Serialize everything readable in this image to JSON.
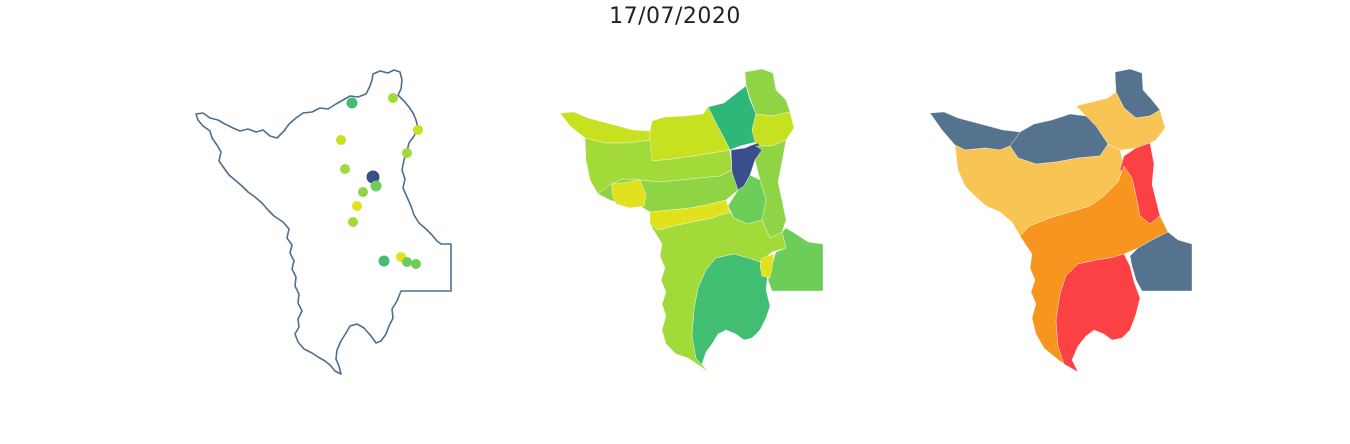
{
  "title": "17/07/2020",
  "palette": {
    "navy": "#3b4e8c",
    "emerald": "#2fb77a",
    "green": "#41be71",
    "mid_green": "#6dcd59",
    "lime_green": "#8fd444",
    "yellow_green": "#a2da3a",
    "chartreuse": "#c7e020",
    "yellow": "#e1e21d",
    "slate": "#55738f",
    "light_orange": "#f8c453",
    "orange": "#f7951f",
    "red": "#fb4144"
  },
  "panels": [
    {
      "name": "stations-map",
      "type": "point-map"
    },
    {
      "name": "basins-choropleth",
      "type": "choropleth"
    },
    {
      "name": "basins-categories",
      "type": "choropleth"
    }
  ],
  "stations": [
    {
      "id": "s1",
      "color": "#41be71"
    },
    {
      "id": "s2",
      "color": "#a2da3a"
    },
    {
      "id": "s3",
      "color": "#c7e020"
    },
    {
      "id": "s4",
      "color": "#c7e020"
    },
    {
      "id": "s5",
      "color": "#a2da3a"
    },
    {
      "id": "s6",
      "color": "#a2da3a"
    },
    {
      "id": "s7",
      "color": "#3b4e8c"
    },
    {
      "id": "s8",
      "color": "#6dcd59"
    },
    {
      "id": "s9",
      "color": "#8fd444"
    },
    {
      "id": "s10",
      "color": "#e1e21d"
    },
    {
      "id": "s11",
      "color": "#a2da3a"
    },
    {
      "id": "s12",
      "color": "#41be71"
    },
    {
      "id": "s13",
      "color": "#e1e21d"
    },
    {
      "id": "s14",
      "color": "#6dcd59"
    },
    {
      "id": "s15",
      "color": "#6dcd59"
    }
  ],
  "basins_mid": [
    {
      "id": "b-nw-strip",
      "color": "#c7e020"
    },
    {
      "id": "b-north-tip",
      "color": "#8fd444"
    },
    {
      "id": "b-north-center",
      "color": "#2fb77a"
    },
    {
      "id": "b-northeast",
      "color": "#c7e020"
    },
    {
      "id": "b-north-band",
      "color": "#c7e020"
    },
    {
      "id": "b-west-big",
      "color": "#a2da3a"
    },
    {
      "id": "b-center-band",
      "color": "#8fd444"
    },
    {
      "id": "b-navy",
      "color": "#3b4e8c"
    },
    {
      "id": "b-east-strip",
      "color": "#8fd444"
    },
    {
      "id": "b-yellow-band-1",
      "color": "#e1e21d"
    },
    {
      "id": "b-yellow-band-2",
      "color": "#e1e21d"
    },
    {
      "id": "b-center-green",
      "color": "#6dcd59"
    },
    {
      "id": "b-south-big",
      "color": "#a2da3a"
    },
    {
      "id": "b-south-green",
      "color": "#41be71"
    },
    {
      "id": "b-east-box",
      "color": "#6dcd59"
    },
    {
      "id": "b-yellow-small",
      "color": "#e1e21d"
    }
  ],
  "basins_right": [
    {
      "id": "c-north-tip",
      "color": "#55738f"
    },
    {
      "id": "c-north-light",
      "color": "#f8c453"
    },
    {
      "id": "c-north-band",
      "color": "#55738f"
    },
    {
      "id": "c-west-strip",
      "color": "#55738f"
    },
    {
      "id": "c-central-light",
      "color": "#f8c453"
    },
    {
      "id": "c-east-red-strip",
      "color": "#fb4144"
    },
    {
      "id": "c-center-orange",
      "color": "#f7951f"
    },
    {
      "id": "c-south-orange",
      "color": "#f7951f"
    },
    {
      "id": "c-south-red",
      "color": "#fb4144"
    },
    {
      "id": "c-east-box",
      "color": "#55738f"
    }
  ]
}
